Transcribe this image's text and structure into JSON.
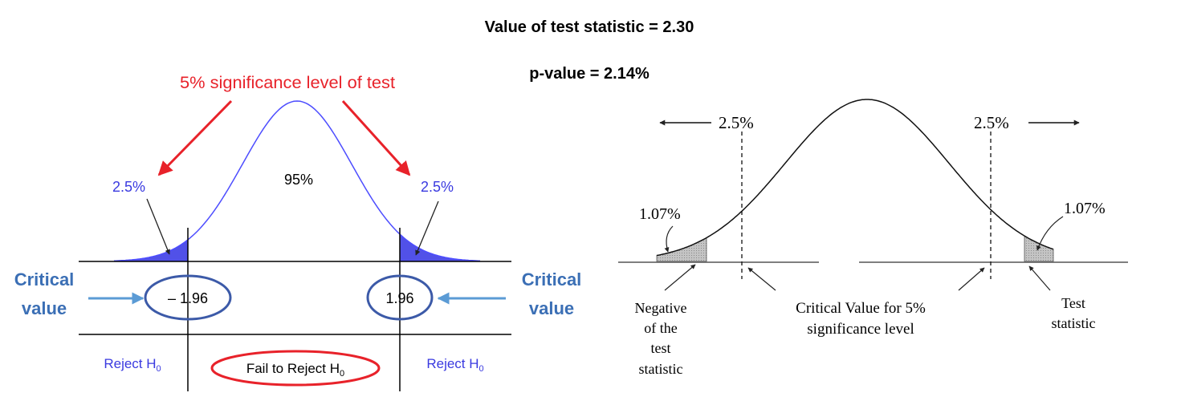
{
  "header": {
    "test_statistic": "Value of test statistic = 2.30",
    "p_value": "p-value = 2.14%"
  },
  "left_diagram": {
    "significance_title": "5% significance level of test",
    "left_tail_pct": "2.5%",
    "center_pct": "95%",
    "right_tail_pct": "2.5%",
    "critical_label_line1": "Critical",
    "critical_label_line2": "value",
    "neg_critical_value": "– 1.96",
    "pos_critical_value": "1.96",
    "reject_left": "Reject H",
    "fail_to_reject": "Fail to  Reject H",
    "reject_right": "Reject H",
    "subscript_zero": "0"
  },
  "right_diagram": {
    "left_half_alpha": "2.5%",
    "right_half_alpha": "2.5%",
    "left_tail_pct": "1.07%",
    "right_tail_pct": "1.07%",
    "neg_stat_line1": "Negative",
    "neg_stat_line2": "of the",
    "neg_stat_line3": "test",
    "neg_stat_line4": "statistic",
    "crit_line1": "Critical Value for 5%",
    "crit_line2": "significance level",
    "stat_line1": "Test",
    "stat_line2": "statistic"
  },
  "colors": {
    "curve_blue": "#4d4dff",
    "fill_blue": "#5151e8",
    "annotation_red": "#e8222a",
    "ellipse_blue": "#3c5aa8",
    "label_blue": "#3b6fb5",
    "arrow_light_blue": "#5b9bd5",
    "tail_gray": "#b5b5b5"
  }
}
